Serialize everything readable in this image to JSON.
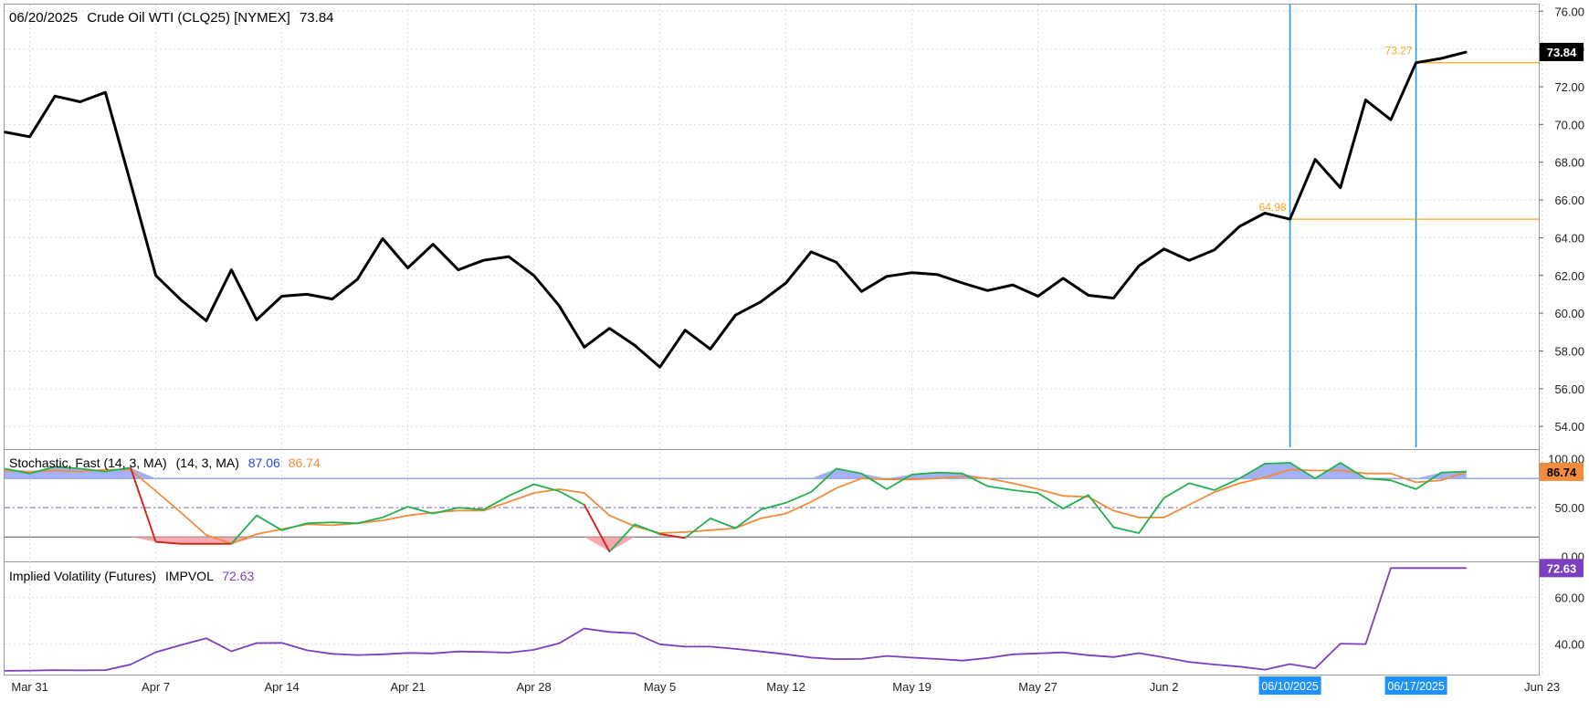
{
  "colors": {
    "price": "#000000",
    "marker_line": "#2196f3",
    "marker_label_bg": "#1e90ff",
    "annotation": "#f5a623",
    "stoch_k": "#22b14c",
    "stoch_d": "#f08c3c",
    "stoch_fill_over": "#9aa8f5",
    "stoch_fill_under": "#f5a0a8",
    "stoch_fill_under_k": "#ff2020",
    "stoch_band": "#5b7bd5",
    "impvol": "#7b3fbf",
    "grid": "#d9d9d9",
    "pane_border": "#999999",
    "last_price_bg": "#000000",
    "stoch_badge_bg": "#f08c3c",
    "impvol_badge_bg": "#7b3fbf"
  },
  "header": {
    "date": "06/20/2025",
    "symbol": "Crude Oil WTI (CLQ25) [NYMEX]",
    "last": "73.84"
  },
  "stoch_legend": {
    "name": "Stochastic, Fast (14, 3, MA)",
    "params": "(14, 3, MA)",
    "k_value": "87.06",
    "d_value": "86.74"
  },
  "iv_legend": {
    "name": "Implied Volatility (Futures)",
    "short": "IMPVOL",
    "value": "72.63"
  },
  "badges": {
    "price": "73.84",
    "stoch": "86.74",
    "impvol": "72.63"
  },
  "markers": [
    {
      "date_index": 52,
      "label": "06/10/2025"
    },
    {
      "date_index": 57,
      "label": "06/17/2025"
    }
  ],
  "annotations": [
    {
      "date_index": 52,
      "value": 64.98,
      "text": "64.98"
    },
    {
      "date_index": 57,
      "value": 73.27,
      "text": "73.27"
    }
  ],
  "chart_data": [
    {
      "type": "line",
      "title": "06/20/2025 Crude Oil WTI (CLQ25) [NYMEX] 73.84",
      "x_tick_labels": [
        "Mar 31",
        "Apr 7",
        "Apr 14",
        "Apr 21",
        "Apr 28",
        "May 5",
        "May 12",
        "May 19",
        "May 27",
        "Jun 2",
        "Jun 23"
      ],
      "x_tick_indices": [
        1,
        6,
        11,
        16,
        21,
        26,
        31,
        36,
        41,
        46,
        61
      ],
      "y_ticks": [
        "54.00",
        "56.00",
        "58.00",
        "60.00",
        "62.00",
        "64.00",
        "66.00",
        "68.00",
        "70.00",
        "72.00",
        "74.00",
        "76.00"
      ],
      "ylim": [
        52.8,
        76.4
      ],
      "grid": true,
      "series": [
        {
          "values": [
            69.6,
            69.35,
            71.5,
            71.2,
            71.7,
            66.9,
            62.0,
            60.7,
            59.6,
            62.3,
            59.65,
            60.9,
            61.0,
            60.75,
            61.8,
            63.95,
            62.4,
            63.65,
            62.3,
            62.8,
            63.0,
            62.0,
            60.4,
            58.2,
            59.2,
            58.3,
            57.15,
            59.1,
            58.1,
            59.9,
            60.6,
            61.6,
            63.25,
            62.7,
            61.15,
            61.95,
            62.15,
            62.05,
            61.6,
            61.2,
            61.5,
            60.9,
            61.85,
            60.95,
            60.8,
            62.5,
            63.4,
            62.8,
            63.35,
            64.6,
            65.3,
            64.98,
            68.15,
            66.65,
            71.3,
            70.25,
            73.27,
            73.5,
            73.84
          ]
        }
      ]
    },
    {
      "type": "line",
      "title": "Stochastic, Fast (14, 3, MA)",
      "y_ticks": [
        "0.00",
        "50.00",
        "100.00"
      ],
      "ylim": [
        -5,
        110
      ],
      "bands": [
        20,
        50,
        80
      ],
      "series": [
        {
          "name": "87.06",
          "values": [
            90,
            85,
            92,
            90,
            87,
            91,
            15,
            13,
            13,
            13,
            42,
            27,
            34,
            35,
            34,
            40,
            51,
            44,
            50,
            48,
            62,
            74,
            67,
            53,
            5,
            33,
            23,
            19,
            39,
            29,
            48,
            55,
            66,
            90,
            85,
            69,
            84,
            86,
            85,
            72,
            68,
            65,
            49,
            63,
            30,
            24,
            60,
            75,
            68,
            80,
            95,
            96,
            80,
            96,
            80,
            78,
            69,
            86,
            87.06
          ]
        },
        {
          "name": "86.74",
          "values": [
            88,
            87,
            88,
            87,
            89,
            89,
            67,
            45,
            22,
            13,
            23,
            28,
            33,
            32,
            34,
            37,
            42,
            45,
            47,
            47,
            56,
            65,
            69,
            65,
            42,
            31,
            24,
            25,
            27,
            29,
            39,
            44,
            56,
            70,
            80,
            79,
            79,
            80,
            82,
            80,
            75,
            69,
            62,
            61,
            47,
            40,
            40,
            53,
            66,
            75,
            81,
            89,
            88,
            88,
            85,
            85,
            76,
            78,
            86.74
          ]
        }
      ]
    },
    {
      "type": "line",
      "title": "Implied Volatility (Futures) IMPVOL",
      "y_ticks": [
        "40.00",
        "60.00"
      ],
      "ylim": [
        26.5,
        75.5
      ],
      "series": [
        {
          "values": [
            28.5,
            28.6,
            28.8,
            28.7,
            28.8,
            31.2,
            36.5,
            39.6,
            42.5,
            36.9,
            40.4,
            40.5,
            37.3,
            35.8,
            35.3,
            35.6,
            36.2,
            36.0,
            36.8,
            36.6,
            36.3,
            37.5,
            40.3,
            46.7,
            45.2,
            44.6,
            39.9,
            38.9,
            38.9,
            37.9,
            36.8,
            35.6,
            34.2,
            33.5,
            33.6,
            34.9,
            34.2,
            33.6,
            32.9,
            34.0,
            35.6,
            36.0,
            36.4,
            35.2,
            34.4,
            36.1,
            34.3,
            32.3,
            31.2,
            30.3,
            29.0,
            31.4,
            29.6,
            40.2,
            40.0,
            72.63,
            72.63,
            72.63,
            72.63
          ]
        }
      ]
    }
  ]
}
